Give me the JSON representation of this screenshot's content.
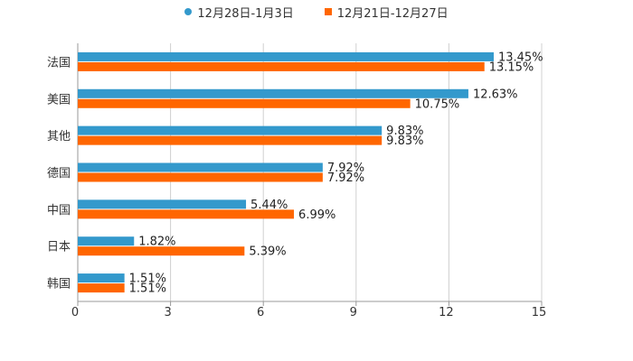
{
  "chart_data": {
    "type": "bar",
    "orientation": "horizontal",
    "title": "",
    "xlabel": "",
    "ylabel": "",
    "xlim": [
      0,
      15
    ],
    "xticks": [
      "0",
      "3",
      "6",
      "9",
      "12",
      "15"
    ],
    "xtick_values": [
      0,
      3,
      6,
      9,
      12,
      15
    ],
    "grid": true,
    "legend_position": "top-center",
    "categories": [
      "法国",
      "美国",
      "其他",
      "德国",
      "中国",
      "日本",
      "韩国"
    ],
    "series": [
      {
        "name": "12月28日-1月3日",
        "color": "#3399cc",
        "values": [
          13.45,
          12.63,
          9.83,
          7.92,
          5.44,
          1.82,
          1.51
        ],
        "labels": [
          "13.45%",
          "12.63%",
          "9.83%",
          "7.92%",
          "5.44%",
          "1.82%",
          "1.51%"
        ]
      },
      {
        "name": "12月21日-12月27日",
        "color": "#ff6600",
        "values": [
          13.15,
          10.75,
          9.83,
          7.92,
          6.99,
          5.39,
          1.51
        ],
        "labels": [
          "13.15%",
          "10.75%",
          "9.83%",
          "7.92%",
          "6.99%",
          "5.39%",
          "1.51%"
        ]
      }
    ]
  }
}
